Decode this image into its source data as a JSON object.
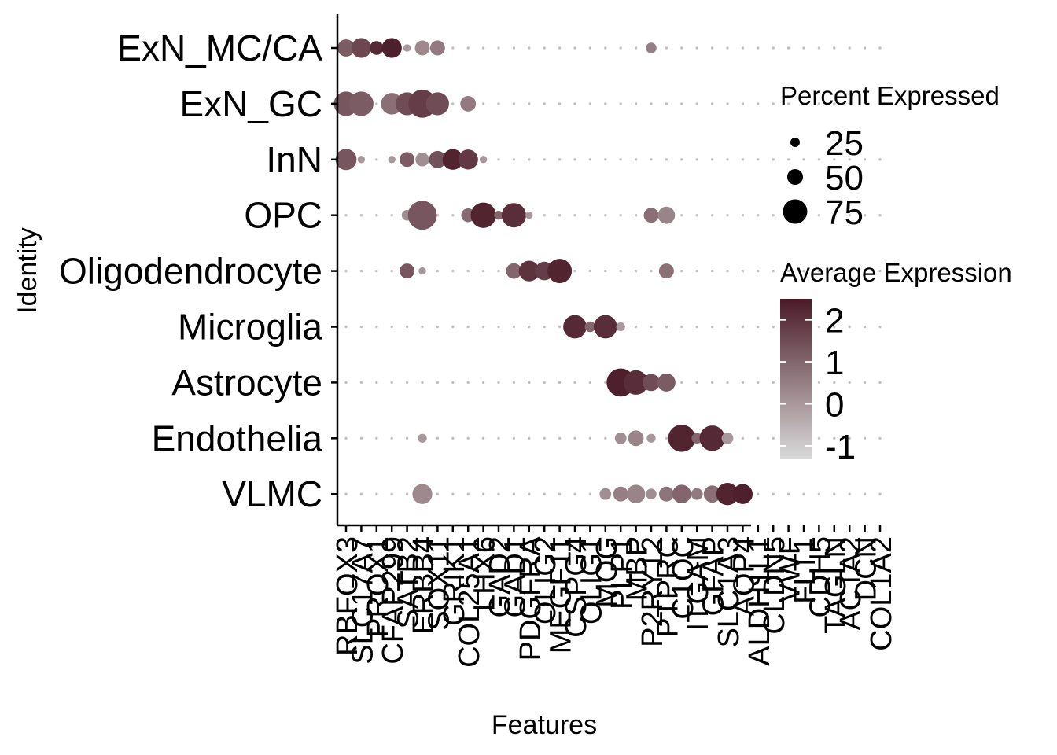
{
  "chart_data": {
    "type": "scatter",
    "subtype": "dotplot",
    "xlabel": "Features",
    "ylabel": "Identity",
    "identities": [
      "ExN_MC/CA",
      "ExN_GC",
      "InN",
      "OPC",
      "Oligodendrocyte",
      "Microglia",
      "Astrocyte",
      "Endothelia",
      "VLMC"
    ],
    "features": [
      "RBFOX3",
      "SLC17A7",
      "PROX1",
      "CFAP299",
      "SATB2",
      "ERBB4",
      "SOX11",
      "GRIK1",
      "COL25A1",
      "LHX6",
      "GAD2",
      "GAD1",
      "PDGFRA",
      "OLIG2",
      "MEGF11",
      "CSPG4",
      "OLIG1",
      "MOG",
      "PLP1",
      "MBP",
      "P2RY12",
      "PTPRC",
      "C1QC",
      "ITGAM",
      "GFAP",
      "SLC1A3",
      "AQP4",
      "ALDH1L1",
      "CLDN5",
      "VWF",
      "FLT1",
      "CDH5",
      "TAGLN",
      "ACTA2",
      "DCN",
      "COL1A2"
    ],
    "features_visible_note": "",
    "size_legend": {
      "title": "Percent Expressed",
      "values": [
        25,
        50,
        75
      ]
    },
    "color_legend": {
      "title": "Average Expression",
      "ticks": [
        "2",
        "1",
        "0",
        "-1"
      ],
      "min": -1.3,
      "max": 2.5,
      "low_color": "#d9d9d9",
      "high_color": "#4a1a27"
    },
    "points": [
      [
        0,
        0,
        25,
        1.2
      ],
      [
        0,
        1,
        35,
        1.6
      ],
      [
        0,
        2,
        15,
        2.2
      ],
      [
        0,
        3,
        35,
        2.4
      ],
      [
        0,
        4,
        3,
        0.0
      ],
      [
        0,
        5,
        18,
        0.3
      ],
      [
        0,
        6,
        18,
        0.6
      ],
      [
        0,
        20,
        8,
        0.5
      ],
      [
        1,
        0,
        55,
        1.3
      ],
      [
        1,
        1,
        55,
        1.2
      ],
      [
        1,
        3,
        42,
        0.8
      ],
      [
        1,
        4,
        48,
        1.5
      ],
      [
        1,
        5,
        75,
        1.8
      ],
      [
        1,
        6,
        48,
        1.5
      ],
      [
        1,
        8,
        20,
        0.6
      ],
      [
        2,
        0,
        40,
        1.3
      ],
      [
        2,
        1,
        3,
        0.0
      ],
      [
        2,
        3,
        3,
        0.0
      ],
      [
        2,
        4,
        18,
        1.2
      ],
      [
        2,
        5,
        15,
        0.2
      ],
      [
        2,
        6,
        25,
        1.4
      ],
      [
        2,
        7,
        38,
        2.3
      ],
      [
        2,
        8,
        35,
        1.9
      ],
      [
        2,
        9,
        3,
        0.0
      ],
      [
        3,
        4,
        8,
        0.2
      ],
      [
        3,
        5,
        80,
        1.3
      ],
      [
        3,
        8,
        15,
        0.9
      ],
      [
        3,
        9,
        60,
        2.3
      ],
      [
        3,
        10,
        5,
        1.0
      ],
      [
        3,
        11,
        55,
        2.1
      ],
      [
        3,
        12,
        3,
        0.0
      ],
      [
        3,
        20,
        18,
        0.8
      ],
      [
        3,
        21,
        25,
        0.4
      ],
      [
        4,
        4,
        18,
        1.3
      ],
      [
        4,
        5,
        3,
        0.0
      ],
      [
        4,
        11,
        20,
        1.0
      ],
      [
        4,
        12,
        38,
        2.0
      ],
      [
        4,
        13,
        30,
        1.8
      ],
      [
        4,
        14,
        55,
        2.3
      ],
      [
        4,
        21,
        18,
        0.8
      ],
      [
        5,
        15,
        50,
        2.2
      ],
      [
        5,
        16,
        8,
        1.0
      ],
      [
        5,
        17,
        50,
        2.1
      ],
      [
        5,
        18,
        5,
        0.0
      ],
      [
        6,
        18,
        75,
        2.4
      ],
      [
        6,
        19,
        55,
        2.1
      ],
      [
        6,
        20,
        25,
        1.5
      ],
      [
        6,
        21,
        28,
        1.2
      ],
      [
        7,
        5,
        5,
        0.0
      ],
      [
        7,
        18,
        10,
        0.2
      ],
      [
        7,
        19,
        20,
        0.4
      ],
      [
        7,
        20,
        5,
        0.0
      ],
      [
        7,
        22,
        70,
        2.3
      ],
      [
        7,
        23,
        8,
        1.0
      ],
      [
        7,
        24,
        60,
        2.2
      ],
      [
        7,
        25,
        10,
        0.0
      ],
      [
        8,
        5,
        35,
        0.3
      ],
      [
        8,
        17,
        10,
        0.2
      ],
      [
        8,
        18,
        18,
        0.5
      ],
      [
        8,
        19,
        30,
        0.4
      ],
      [
        8,
        20,
        8,
        0.2
      ],
      [
        8,
        21,
        18,
        0.7
      ],
      [
        8,
        22,
        30,
        1.0
      ],
      [
        8,
        23,
        10,
        0.6
      ],
      [
        8,
        24,
        25,
        0.8
      ],
      [
        8,
        25,
        45,
        2.3
      ],
      [
        8,
        26,
        35,
        2.4
      ]
    ]
  }
}
